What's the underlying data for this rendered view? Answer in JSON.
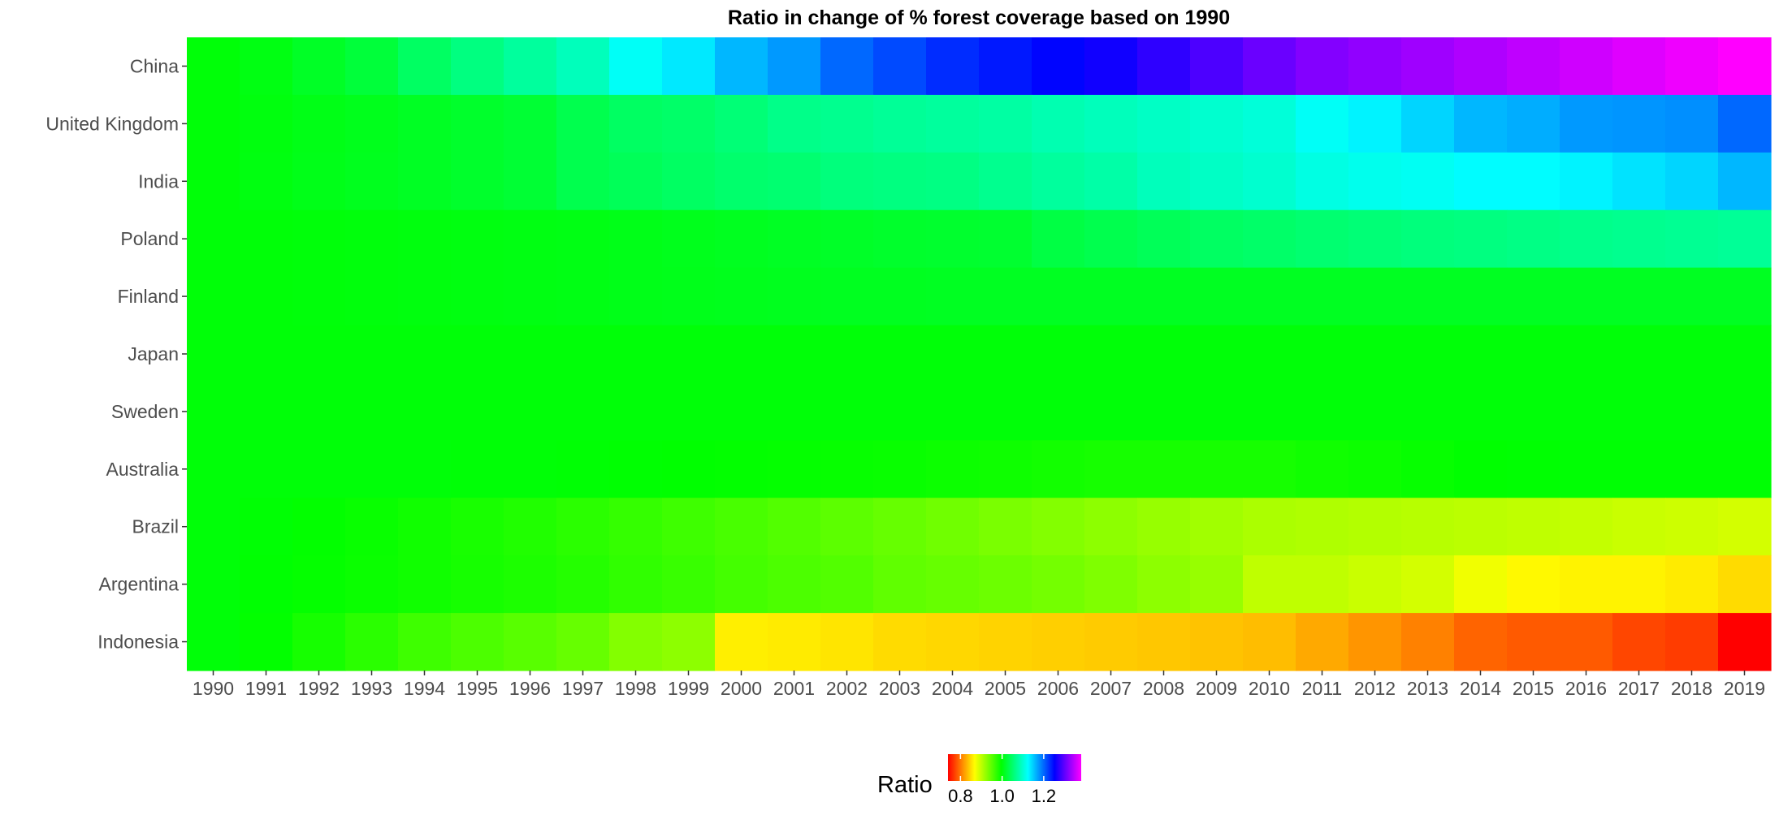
{
  "chart_data": {
    "type": "heatmap",
    "title": "Ratio in change of % forest coverage based on 1990",
    "xlabel": "",
    "ylabel": "",
    "x": [
      "1990",
      "1991",
      "1992",
      "1993",
      "1994",
      "1995",
      "1996",
      "1997",
      "1998",
      "1999",
      "2000",
      "2001",
      "2002",
      "2003",
      "2004",
      "2005",
      "2006",
      "2007",
      "2008",
      "2009",
      "2010",
      "2011",
      "2012",
      "2013",
      "2014",
      "2015",
      "2016",
      "2017",
      "2018",
      "2019"
    ],
    "y": [
      "China",
      "United Kingdom",
      "India",
      "Poland",
      "Finland",
      "Japan",
      "Sweden",
      "Australia",
      "Brazil",
      "Argentina",
      "Indonesia"
    ],
    "values": [
      [
        1.0,
        1.005,
        1.015,
        1.025,
        1.045,
        1.06,
        1.075,
        1.09,
        1.12,
        1.135,
        1.16,
        1.175,
        1.2,
        1.215,
        1.23,
        1.24,
        1.25,
        1.26,
        1.275,
        1.29,
        1.305,
        1.318,
        1.325,
        1.332,
        1.34,
        1.348,
        1.356,
        1.364,
        1.372,
        1.38
      ],
      [
        1.0,
        1.003,
        1.007,
        1.01,
        1.014,
        1.018,
        1.022,
        1.035,
        1.045,
        1.048,
        1.055,
        1.065,
        1.068,
        1.072,
        1.075,
        1.078,
        1.085,
        1.09,
        1.095,
        1.1,
        1.105,
        1.12,
        1.13,
        1.145,
        1.16,
        1.165,
        1.175,
        1.177,
        1.18,
        1.2
      ],
      [
        1.0,
        1.004,
        1.008,
        1.011,
        1.014,
        1.018,
        1.022,
        1.035,
        1.04,
        1.045,
        1.05,
        1.052,
        1.058,
        1.06,
        1.062,
        1.068,
        1.075,
        1.08,
        1.09,
        1.095,
        1.1,
        1.11,
        1.115,
        1.118,
        1.125,
        1.125,
        1.13,
        1.138,
        1.145,
        1.16
      ],
      [
        1.0,
        1.0,
        1.001,
        1.002,
        1.003,
        1.004,
        1.005,
        1.006,
        1.008,
        1.01,
        1.012,
        1.014,
        1.016,
        1.018,
        1.019,
        1.02,
        1.03,
        1.035,
        1.04,
        1.045,
        1.048,
        1.052,
        1.055,
        1.058,
        1.06,
        1.063,
        1.066,
        1.068,
        1.07,
        1.072
      ],
      [
        1.0,
        1.0,
        1.001,
        1.002,
        1.003,
        1.004,
        1.005,
        1.006,
        1.008,
        1.009,
        1.01,
        1.011,
        1.012,
        1.012,
        1.013,
        1.013,
        1.013,
        1.013,
        1.013,
        1.013,
        1.013,
        1.013,
        1.013,
        1.013,
        1.013,
        1.013,
        1.013,
        1.013,
        1.013,
        1.013
      ],
      [
        1.0,
        1.0,
        1.0,
        1.0,
        1.0,
        1.0,
        1.0,
        1.0,
        1.0,
        1.0,
        1.0,
        1.0,
        1.0,
        1.0,
        1.0,
        1.0,
        1.0,
        1.0,
        1.0,
        1.0,
        1.0,
        1.0,
        1.0,
        1.0,
        1.0,
        1.0,
        1.0,
        1.0,
        1.0,
        1.0
      ],
      [
        1.0,
        1.0,
        1.0,
        1.0,
        1.0,
        1.0,
        1.0,
        1.0,
        1.0,
        1.0,
        1.0,
        1.0,
        1.0,
        1.0,
        1.0,
        1.0,
        1.0,
        1.0,
        1.0,
        1.0,
        1.0,
        1.0,
        1.0,
        1.0,
        1.0,
        1.0,
        1.0,
        1.0,
        1.0,
        1.0
      ],
      [
        1.0,
        1.0,
        1.0,
        1.0,
        1.0,
        0.999,
        0.999,
        0.998,
        0.997,
        0.996,
        0.995,
        0.994,
        0.993,
        0.992,
        0.99,
        0.989,
        0.987,
        0.985,
        0.985,
        0.985,
        0.985,
        0.988,
        0.99,
        0.993,
        0.996,
        0.997,
        0.998,
        0.998,
        0.998,
        0.998
      ],
      [
        1.0,
        0.998,
        0.995,
        0.992,
        0.988,
        0.984,
        0.98,
        0.975,
        0.97,
        0.965,
        0.96,
        0.955,
        0.95,
        0.945,
        0.94,
        0.935,
        0.93,
        0.925,
        0.92,
        0.915,
        0.91,
        0.908,
        0.906,
        0.904,
        0.902,
        0.9,
        0.898,
        0.895,
        0.893,
        0.89
      ],
      [
        1.0,
        0.997,
        0.994,
        0.991,
        0.988,
        0.985,
        0.982,
        0.978,
        0.972,
        0.968,
        0.962,
        0.958,
        0.955,
        0.948,
        0.945,
        0.942,
        0.938,
        0.932,
        0.925,
        0.92,
        0.9,
        0.9,
        0.895,
        0.89,
        0.875,
        0.865,
        0.862,
        0.862,
        0.858,
        0.85
      ],
      [
        1.0,
        0.995,
        0.985,
        0.975,
        0.965,
        0.958,
        0.952,
        0.945,
        0.93,
        0.925,
        0.86,
        0.858,
        0.855,
        0.85,
        0.848,
        0.846,
        0.844,
        0.842,
        0.84,
        0.838,
        0.835,
        0.825,
        0.815,
        0.805,
        0.79,
        0.785,
        0.785,
        0.775,
        0.77,
        0.74
      ]
    ],
    "colorbar": {
      "title": "Ratio",
      "range": [
        0.74,
        1.38
      ],
      "ticks": [
        0.8,
        1.0,
        1.2
      ],
      "tick_labels": [
        "0.8",
        "1.0",
        "1.2"
      ],
      "palette": [
        "#ff0000",
        "#ffff00",
        "#00ff00",
        "#00ffff",
        "#0000ff",
        "#ff00ff"
      ],
      "placement": "bottom"
    },
    "grid": false,
    "legend_placement": "bottom"
  }
}
